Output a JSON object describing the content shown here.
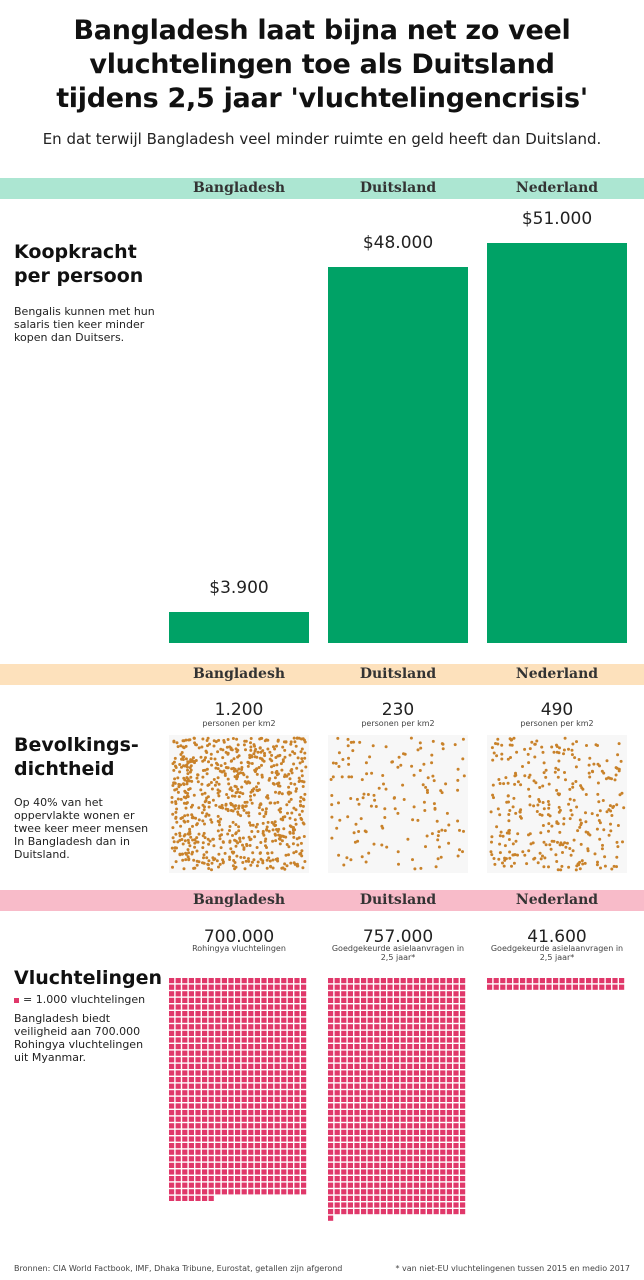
{
  "title": [
    "Bangladesh laat bijna net zo veel",
    "vluchtelingen toe als Duitsland",
    "tijdens 2,5 jaar 'vluchtelingencrisis'"
  ],
  "subtitle": "En dat terwijl Bangladesh veel minder ruimte en geld heeft dan Duitsland.",
  "columns": [
    "Bangladesh",
    "Duitsland",
    "Nederland"
  ],
  "colors": {
    "koopkracht": "#00a266",
    "koopkracht_band": "#ace6d2",
    "dichtheid": "#c9822a",
    "dichtheid_band": "#fde1bc",
    "vluchtelingen": "#e0386a",
    "vluchtelingen_band": "#f8bbc9"
  },
  "sections": {
    "koopkracht": {
      "heading": [
        "Koopkracht",
        "per persoon"
      ],
      "description": "Bengalis kunnen met hun salaris tien keer minder kopen dan Duitsers."
    },
    "dichtheid": {
      "heading": [
        "Bevolkings-",
        "dichtheid"
      ],
      "description": "Op 40% van het oppervlakte wonen er twee keer meer mensen In Bangladesh dan in Duitsland."
    },
    "vluchtelingen": {
      "heading": "Vluchtelingen",
      "legend": "= 1.000 vluchtelingen",
      "description": "Bangladesh biedt veiligheid aan 700.000 Rohingya vluchtelingen uit Myanmar."
    }
  },
  "chart_data": [
    {
      "type": "bar",
      "categories": [
        "Bangladesh",
        "Duitsland",
        "Nederland"
      ],
      "values": [
        3900,
        48000,
        51000
      ],
      "data_labels": [
        "$3.900",
        "$48.000",
        "$51.000"
      ],
      "title": "Koopkracht per persoon"
    },
    {
      "type": "scatter",
      "categories": [
        "Bangladesh",
        "Duitsland",
        "Nederland"
      ],
      "values": [
        1200,
        230,
        490
      ],
      "data_labels": [
        "1.200",
        "230",
        "490"
      ],
      "unit": "personen per km2",
      "title": "Bevolkingsdichtheid"
    },
    {
      "type": "bar",
      "categories": [
        "Bangladesh",
        "Duitsland",
        "Nederland"
      ],
      "values": [
        700000,
        757000,
        41600
      ],
      "data_labels": [
        "700.000",
        "757.000",
        "41.600"
      ],
      "sublabels": [
        "Rohingya vluchtelingen",
        "Goedgekeurde asielaanvragen in 2,5 jaar*",
        "Goedgekeurde asielaanvragen in 2,5 jaar*"
      ],
      "title": "Vluchtelingen"
    }
  ],
  "footer": {
    "sources": "Bronnen: CIA World Factbook, IMF, Dhaka Tribune, Eurostat, getallen zijn afgerond",
    "note": "* van niet-EU vluchtelingenen tussen 2015 en medio 2017"
  }
}
